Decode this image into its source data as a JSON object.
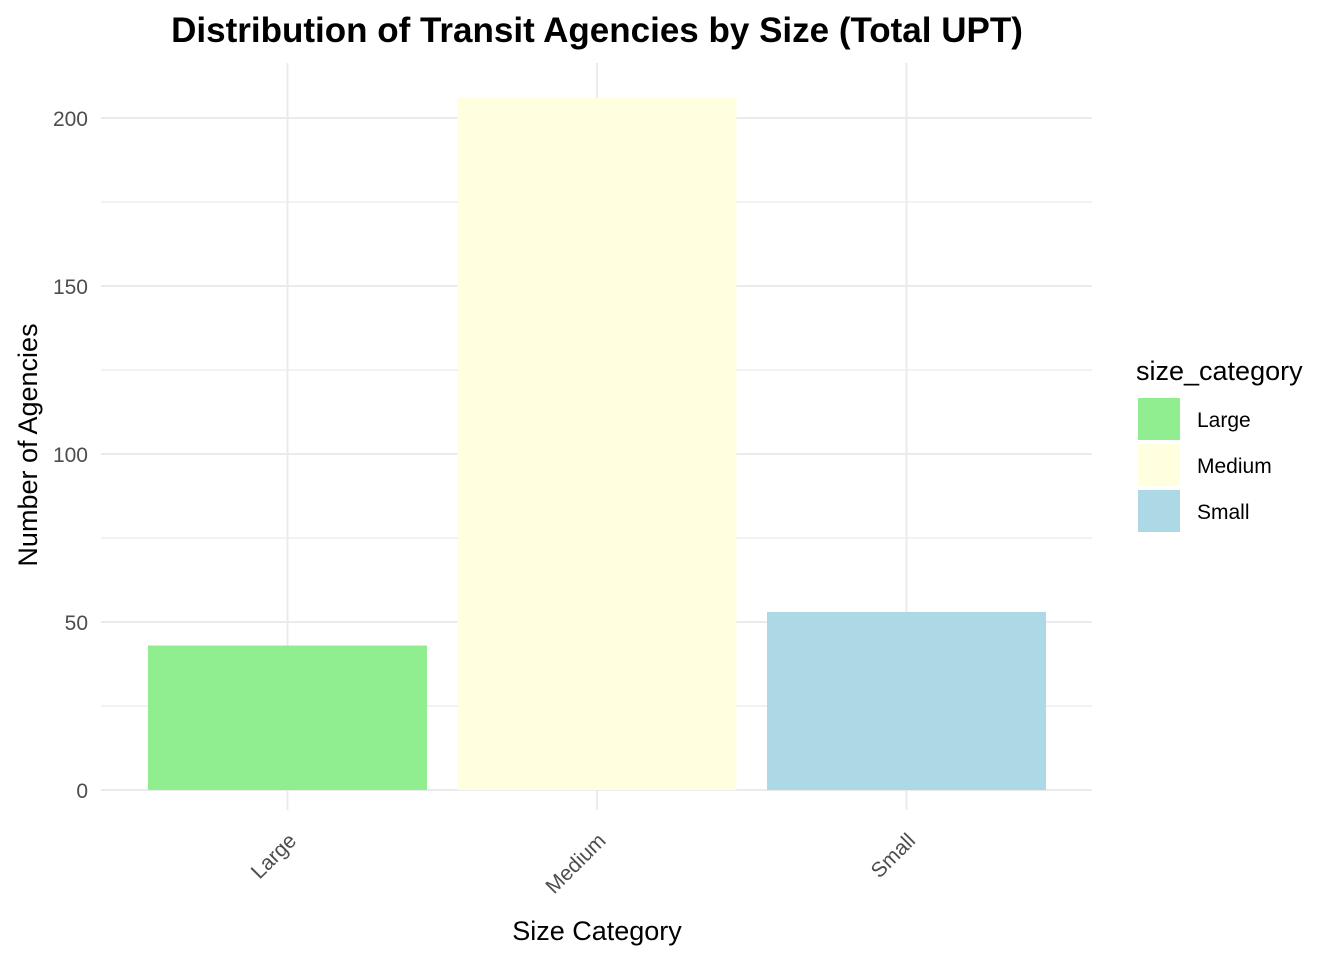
{
  "chart_data": {
    "type": "bar",
    "title": "Distribution of Transit Agencies by Size (Total UPT)",
    "xlabel": "Size Category",
    "ylabel": "Number of Agencies",
    "categories": [
      "Large",
      "Medium",
      "Small"
    ],
    "values": [
      43,
      206,
      53
    ],
    "colors": [
      "#90ee90",
      "#ffffe0",
      "#add8e6"
    ],
    "ylim": [
      0,
      206
    ],
    "y_ticks": [
      0,
      50,
      100,
      150,
      200
    ],
    "y_tick_labels": [
      "0",
      "50",
      "100",
      "150",
      "200"
    ],
    "grid": true,
    "x_tick_rotation_deg": 45,
    "legend": {
      "title": "size_category",
      "placement": "right",
      "entries": [
        {
          "label": "Large",
          "color": "#90ee90"
        },
        {
          "label": "Medium",
          "color": "#ffffe0"
        },
        {
          "label": "Small",
          "color": "#add8e6"
        }
      ]
    }
  }
}
